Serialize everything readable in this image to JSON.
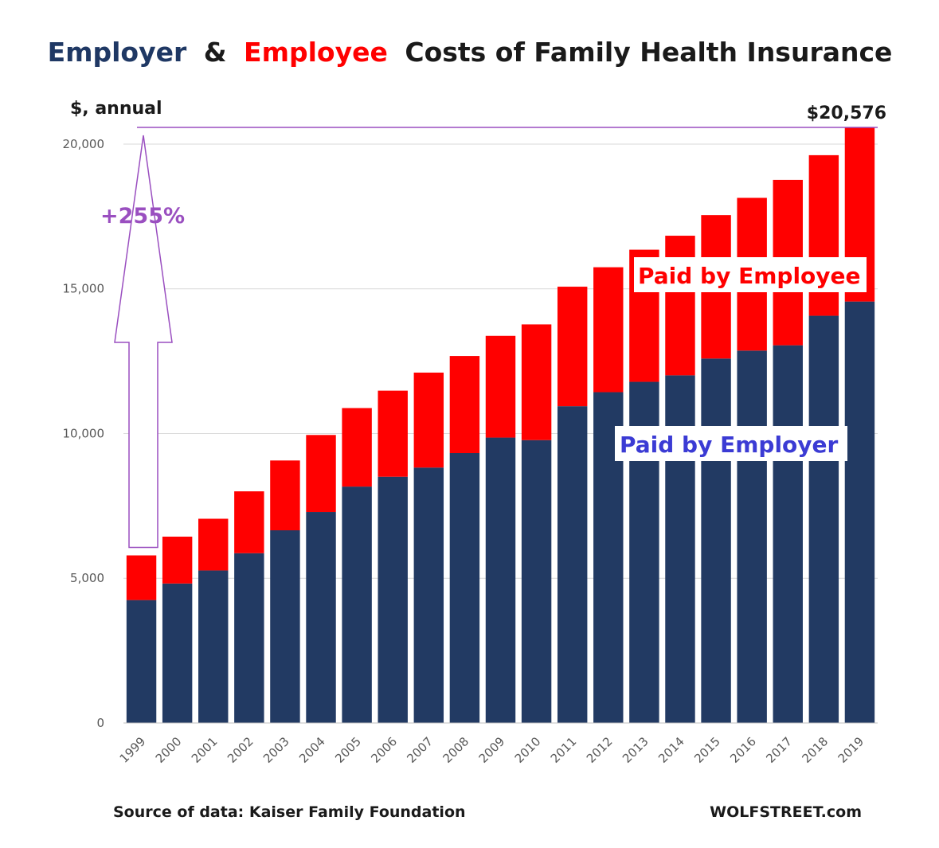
{
  "chart_data": {
    "type": "bar",
    "stacked": true,
    "title": {
      "employer_part": "Employer",
      "amp": "&",
      "employee_part": "Employee",
      "rest": "Costs of Family Health Insurance"
    },
    "ylabel": "$, annual",
    "xlabel": "",
    "ylim": [
      0,
      20576
    ],
    "yticks": [
      0,
      5000,
      10000,
      15000,
      20000
    ],
    "ytick_labels": [
      "0",
      "5,000",
      "10,000",
      "15,000",
      "20,000"
    ],
    "grid": true,
    "categories": [
      "1999",
      "2000",
      "2001",
      "2002",
      "2003",
      "2004",
      "2005",
      "2006",
      "2007",
      "2008",
      "2009",
      "2010",
      "2011",
      "2012",
      "2013",
      "2014",
      "2015",
      "2016",
      "2017",
      "2018",
      "2019"
    ],
    "series": [
      {
        "name": "Paid by Employer",
        "color": "#223a63",
        "values": [
          4247,
          4819,
          5269,
          5866,
          6657,
          7289,
          8167,
          8508,
          8824,
          9325,
          9860,
          9773,
          10944,
          11429,
          11786,
          12011,
          12591,
          12865,
          13049,
          14069,
          14561
        ]
      },
      {
        "name": "Paid by Employee",
        "color": "#ff0000",
        "values": [
          1543,
          1619,
          1787,
          2137,
          2412,
          2661,
          2713,
          2973,
          3281,
          3354,
          3515,
          3997,
          4129,
          4316,
          4565,
          4823,
          4955,
          5277,
          5714,
          5547,
          6015
        ]
      }
    ],
    "annotations": {
      "peak_label": "$20,576",
      "increase_label": "+255%",
      "employer_label": "Paid by Employer",
      "employee_label": "Paid by Employee"
    },
    "colors": {
      "employer": "#223a63",
      "employee": "#ff0000",
      "title_employer": "#1f3864",
      "title_employee": "#ff0000",
      "employer_label_text": "#3b3bd4",
      "arrow": "#9a4fc0",
      "grid": "#d9d9d9",
      "axis": "#bfbfbf"
    },
    "source": "Source of data: Kaiser Family Foundation",
    "credit": "WOLFSTREET.com"
  }
}
